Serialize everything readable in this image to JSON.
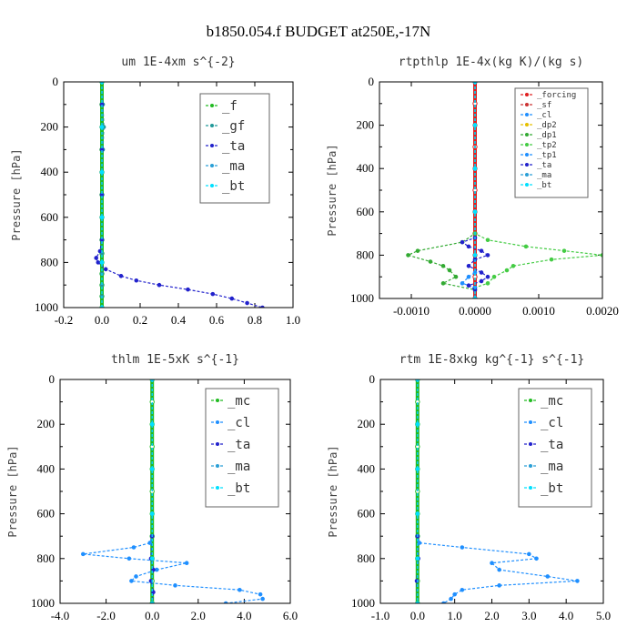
{
  "suptitle": "b1850.054.f  BUDGET at250E,-17N",
  "colors": {
    "f": "#22bb22",
    "gf": "#229999",
    "ta": "#2222cc",
    "ma": "#2a9fd6",
    "bt": "#00e0ff",
    "mc": "#22bb22",
    "cl": "#1f8fff",
    "forcing": "#e02020",
    "sf": "#cc3333",
    "dp2": "#e6c000",
    "dp1": "#33aa33",
    "tp2": "#44cc44",
    "tp1": "#1f8fff"
  },
  "chart_data": [
    {
      "type": "line",
      "title": "um  1E-4xm s^{-2}",
      "ylabel": "Pressure [hPa]",
      "xlim": [
        -0.2,
        1.0
      ],
      "ylim": [
        1000,
        0
      ],
      "xticks": [
        "-0.2",
        "0.0",
        "0.2",
        "0.4",
        "0.6",
        "0.8",
        "1.0"
      ],
      "yticks": [
        "0",
        "200",
        "400",
        "600",
        "800",
        "1000"
      ],
      "legend": [
        "_f",
        "_gf",
        "_ta",
        "_ma",
        "_bt"
      ],
      "series": [
        {
          "name": "_f",
          "key": "f",
          "y": [
            0,
            100,
            200,
            300,
            400,
            500,
            600,
            700,
            760,
            800,
            850,
            900,
            950,
            1000
          ],
          "x": [
            0,
            0,
            0,
            0,
            0,
            0,
            0,
            0,
            0,
            0,
            0,
            0,
            0,
            0
          ]
        },
        {
          "name": "_gf",
          "key": "gf",
          "y": [
            0,
            100,
            200,
            300,
            400,
            500,
            600,
            700,
            760,
            800,
            850,
            900,
            950,
            1000
          ],
          "x": [
            0,
            0.005,
            0.01,
            0.005,
            0,
            0,
            0,
            0,
            0,
            0,
            0,
            0,
            0,
            0
          ]
        },
        {
          "name": "_ta",
          "key": "ta",
          "y": [
            0,
            100,
            200,
            300,
            400,
            500,
            600,
            700,
            750,
            780,
            800,
            830,
            860,
            880,
            900,
            920,
            940,
            960,
            980,
            1000
          ],
          "x": [
            0,
            0,
            0,
            0,
            0,
            0,
            0,
            0,
            -0.01,
            -0.03,
            -0.02,
            0.02,
            0.1,
            0.18,
            0.3,
            0.45,
            0.58,
            0.68,
            0.76,
            0.84
          ]
        },
        {
          "name": "_ma",
          "key": "ma",
          "y": [
            0,
            200,
            400,
            600,
            800,
            1000
          ],
          "x": [
            0,
            0,
            0,
            0,
            0,
            0
          ]
        },
        {
          "name": "_bt",
          "key": "bt",
          "y": [
            0,
            200,
            400,
            600,
            800,
            1000
          ],
          "x": [
            0,
            0,
            0,
            0,
            0,
            0
          ]
        }
      ]
    },
    {
      "type": "line",
      "title": "rtpthlp  1E-4x(kg K)/(kg s)",
      "ylabel": "Pressure [hPa]",
      "xlim": [
        -0.0015,
        0.002
      ],
      "ylim": [
        1000,
        0
      ],
      "xticks": [
        "-0.0010",
        "0.0000",
        "0.0010",
        "0.0020"
      ],
      "yticks": [
        "0",
        "200",
        "400",
        "600",
        "800",
        "1000"
      ],
      "legend": [
        "_forcing",
        "_sf",
        "_cl",
        "_dp2",
        "_dp1",
        "_tp2",
        "_tp1",
        "_ta",
        "_ma",
        "_bt"
      ],
      "series": [
        {
          "name": "_forcing",
          "key": "forcing",
          "y": [
            0,
            100,
            200,
            300,
            400,
            500,
            600,
            700,
            800,
            900,
            1000
          ],
          "x": [
            0,
            0,
            0,
            0,
            0,
            0,
            0,
            0,
            0,
            0,
            0
          ]
        },
        {
          "name": "_sf",
          "key": "sf",
          "y": [
            0,
            200,
            400,
            600,
            800,
            1000
          ],
          "x": [
            0,
            0,
            0,
            0,
            0,
            0
          ]
        },
        {
          "name": "_cl",
          "key": "cl",
          "y": [
            0,
            200,
            400,
            600,
            800,
            1000
          ],
          "x": [
            0,
            0,
            0,
            0,
            0,
            0
          ]
        },
        {
          "name": "_dp2",
          "key": "dp2",
          "y": [
            0,
            200,
            400,
            600,
            800,
            1000
          ],
          "x": [
            0,
            0,
            0,
            0,
            0,
            0
          ]
        },
        {
          "name": "_dp1",
          "key": "dp1",
          "y": [
            0,
            700,
            740,
            780,
            800,
            830,
            850,
            870,
            900,
            930,
            960,
            1000
          ],
          "x": [
            0,
            0,
            -0.0002,
            -0.0009,
            -0.00105,
            -0.0007,
            -0.0005,
            -0.0004,
            -0.0003,
            -0.0005,
            0,
            0
          ]
        },
        {
          "name": "_tp2",
          "key": "tp2",
          "y": [
            0,
            700,
            730,
            760,
            780,
            800,
            820,
            850,
            870,
            900,
            930,
            950,
            1000
          ],
          "x": [
            0,
            0,
            0.0002,
            0.0008,
            0.0014,
            0.002,
            0.0012,
            0.0006,
            0.0005,
            0.0003,
            0.0002,
            0,
            0
          ]
        },
        {
          "name": "_tp1",
          "key": "tp1",
          "y": [
            0,
            880,
            900,
            930,
            950,
            1000
          ],
          "x": [
            0,
            0,
            -0.0001,
            -0.0002,
            0,
            0
          ]
        },
        {
          "name": "_ta",
          "key": "ta",
          "y": [
            0,
            720,
            740,
            760,
            780,
            800,
            820,
            850,
            880,
            900,
            920,
            940,
            960,
            1000
          ],
          "x": [
            0,
            0,
            -0.0002,
            -0.0001,
            0.0001,
            0.0002,
            0,
            -0.0001,
            0.0001,
            0.0002,
            0.0001,
            -0.0001,
            0,
            0
          ]
        },
        {
          "name": "_ma",
          "key": "ma",
          "y": [
            0,
            200,
            400,
            600,
            800,
            1000
          ],
          "x": [
            0,
            0,
            0,
            0,
            0,
            0
          ]
        },
        {
          "name": "_bt",
          "key": "bt",
          "y": [
            0,
            200,
            400,
            600,
            800,
            1000
          ],
          "x": [
            0,
            0,
            0,
            0,
            0,
            0
          ]
        }
      ]
    },
    {
      "type": "line",
      "title": "thlm  1E-5xK s^{-1}",
      "ylabel": "Pressure [hPa]",
      "xlim": [
        -4.0,
        6.0
      ],
      "ylim": [
        1000,
        0
      ],
      "xticks": [
        "-4.0",
        "-2.0",
        "0.0",
        "2.0",
        "4.0",
        "6.0"
      ],
      "yticks": [
        "0",
        "200",
        "400",
        "600",
        "800",
        "1000"
      ],
      "legend": [
        "_mc",
        "_cl",
        "_ta",
        "_ma",
        "_bt"
      ],
      "series": [
        {
          "name": "_mc",
          "key": "mc",
          "y": [
            0,
            100,
            200,
            300,
            400,
            500,
            600,
            700,
            800,
            900,
            1000
          ],
          "x": [
            0,
            0,
            0,
            0,
            0,
            0,
            0,
            0,
            0,
            0,
            0
          ]
        },
        {
          "name": "_cl",
          "key": "cl",
          "y": [
            0,
            700,
            730,
            750,
            780,
            800,
            820,
            850,
            880,
            900,
            920,
            940,
            960,
            980,
            1000
          ],
          "x": [
            0,
            0,
            -0.1,
            -0.8,
            -3.0,
            -1.0,
            1.5,
            0.2,
            -0.7,
            -0.9,
            1.0,
            3.8,
            4.7,
            4.8,
            3.2
          ]
        },
        {
          "name": "_ta",
          "key": "ta",
          "y": [
            0,
            700,
            800,
            850,
            900,
            950,
            1000
          ],
          "x": [
            0,
            0,
            -0.05,
            0.05,
            -0.05,
            0.05,
            0
          ]
        },
        {
          "name": "_ma",
          "key": "ma",
          "y": [
            0,
            200,
            400,
            600,
            800,
            1000
          ],
          "x": [
            0,
            0,
            0,
            0,
            0,
            0
          ]
        },
        {
          "name": "_bt",
          "key": "bt",
          "y": [
            0,
            200,
            400,
            600,
            800,
            1000
          ],
          "x": [
            0,
            0,
            0,
            0,
            0,
            0
          ]
        }
      ]
    },
    {
      "type": "line",
      "title": "rtm  1E-8xkg kg^{-1} s^{-1}",
      "ylabel": "Pressure [hPa]",
      "xlim": [
        -1.0,
        5.0
      ],
      "ylim": [
        1000,
        0
      ],
      "xticks": [
        "-1.0",
        "0.0",
        "1.0",
        "2.0",
        "3.0",
        "4.0",
        "5.0"
      ],
      "yticks": [
        "0",
        "200",
        "400",
        "600",
        "800",
        "1000"
      ],
      "legend": [
        "_mc",
        "_cl",
        "_ta",
        "_ma",
        "_bt"
      ],
      "series": [
        {
          "name": "_mc",
          "key": "mc",
          "y": [
            0,
            100,
            200,
            300,
            400,
            500,
            600,
            700,
            800,
            900,
            1000
          ],
          "x": [
            0,
            0,
            0,
            0,
            0,
            0,
            0,
            0,
            0,
            0,
            0
          ]
        },
        {
          "name": "_cl",
          "key": "cl",
          "y": [
            0,
            700,
            730,
            750,
            780,
            800,
            820,
            850,
            880,
            900,
            920,
            940,
            960,
            980,
            1000
          ],
          "x": [
            0,
            0,
            0.05,
            1.2,
            3.0,
            3.2,
            2.0,
            2.2,
            3.5,
            4.3,
            2.2,
            1.2,
            1.0,
            0.9,
            0.7
          ]
        },
        {
          "name": "_ta",
          "key": "ta",
          "y": [
            0,
            700,
            800,
            900,
            1000
          ],
          "x": [
            0,
            0,
            0.02,
            -0.02,
            0
          ]
        },
        {
          "name": "_ma",
          "key": "ma",
          "y": [
            0,
            200,
            400,
            600,
            800,
            1000
          ],
          "x": [
            0,
            0,
            0,
            0,
            0,
            0
          ]
        },
        {
          "name": "_bt",
          "key": "bt",
          "y": [
            0,
            200,
            400,
            600,
            800,
            1000
          ],
          "x": [
            0,
            0,
            0,
            0,
            0,
            0
          ]
        }
      ]
    }
  ]
}
